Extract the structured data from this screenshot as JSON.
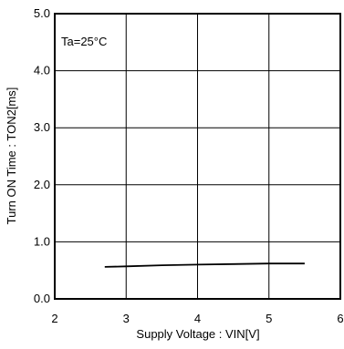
{
  "chart_data": {
    "type": "line",
    "annotation": "Ta=25°C",
    "xlabel": "Supply Voltage : VIN[V]",
    "ylabel": "Turn ON Time : TON2[ms]",
    "xlim": [
      2,
      6
    ],
    "ylim": [
      0,
      5
    ],
    "xticks": [
      2,
      3,
      4,
      5,
      6
    ],
    "yticks": [
      0,
      1,
      2,
      3,
      4,
      5
    ],
    "xtick_labels": [
      "2",
      "3",
      "4",
      "5",
      "6"
    ],
    "ytick_labels": [
      "0.0",
      "1.0",
      "2.0",
      "3.0",
      "4.0",
      "5.0"
    ],
    "grid": true,
    "series": [
      {
        "x": [
          2.7,
          3.0,
          3.5,
          4.0,
          4.5,
          5.0,
          5.5
        ],
        "y": [
          0.56,
          0.57,
          0.59,
          0.6,
          0.61,
          0.62,
          0.62
        ]
      }
    ],
    "colors": {
      "line": "#000000",
      "grid": "#000000",
      "background": "#ffffff"
    }
  }
}
